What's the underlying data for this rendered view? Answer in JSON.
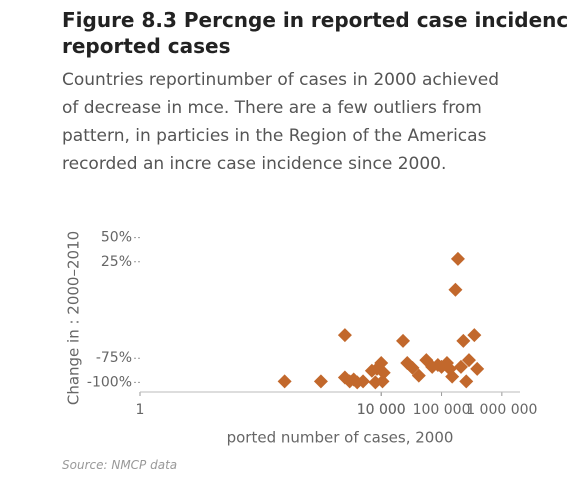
{
  "header": {
    "title_lines": [
      "Figure 8.3 Percnge in reported case incidenc",
      "reported cases"
    ],
    "subtitle_lines": [
      "Countries reportinumber of cases in 2000 achieved",
      "of decrease in mce. There are a few outliers from",
      "pattern, in particies in the Region of the Americas",
      "recorded an incre case incidence since 2000."
    ],
    "source": "Source: NMCP data"
  },
  "chart_data": {
    "type": "scatter",
    "color": "#c2682c",
    "x_label": "ported number of cases, 2000",
    "y_label": "Change in : 2000–2010",
    "xscale": "log",
    "xlim": [
      1,
      2000000
    ],
    "xticks": [
      1,
      {
        "value": 10000,
        "label": "10 000"
      },
      {
        "value": 10000,
        "label": "10 000"
      },
      {
        "value": 100000,
        "label": "100 000"
      },
      {
        "value": 1000000,
        "label": "1 000 000"
      }
    ],
    "ylim": [
      -110,
      60
    ],
    "yticks": [
      {
        "value": 50,
        "label": "50%"
      },
      {
        "value": 25,
        "label": "25%"
      },
      {
        "value": -75,
        "label": "-75%"
      },
      {
        "value": -100,
        "label": "-100%"
      }
    ],
    "x": [
      250,
      1000,
      2500,
      2500,
      3000,
      3500,
      4000,
      5000,
      8000,
      7000,
      8500,
      10000,
      10500,
      11000,
      27000,
      33000,
      42000,
      56000,
      70000,
      87000,
      100000,
      123000,
      137000,
      150000,
      170000,
      187000,
      210000,
      230000,
      257000,
      285000,
      350000,
      390000,
      23000
    ],
    "values": [
      -99,
      -99,
      -51,
      -95,
      -99,
      -97,
      -100,
      -99,
      -100,
      -88,
      -86,
      -80,
      -99,
      -90,
      -80,
      -85,
      -93,
      -77,
      -84,
      -82,
      -84,
      -80,
      -86,
      -94,
      -4,
      28,
      -84,
      -57,
      -99,
      -77,
      -51,
      -86,
      -57
    ]
  }
}
